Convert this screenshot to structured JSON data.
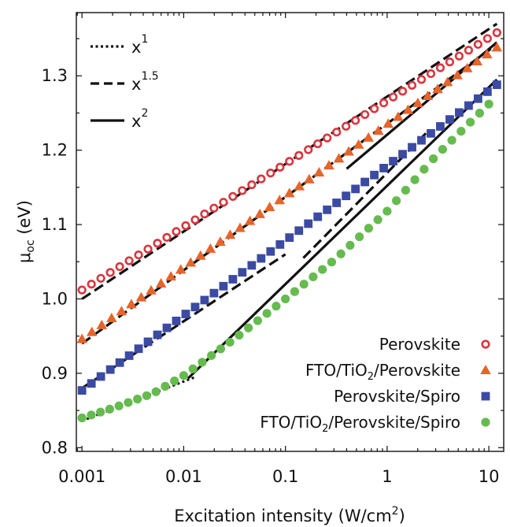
{
  "chart_data": {
    "type": "scatter",
    "xscale": "log",
    "xlim": [
      0.00088,
      14
    ],
    "ylim": [
      0.795,
      1.385
    ],
    "xlabel": "Excitation intensity (W/cm",
    "xlabel_sup": "2",
    "xlabel_tail": ")",
    "ylabel_main": "μ",
    "ylabel_sub": "oc",
    "ylabel_tail": " (eV)",
    "x_ticks": [
      {
        "v": 0.001,
        "label": "0.001"
      },
      {
        "v": 0.01,
        "label": "0.01"
      },
      {
        "v": 0.1,
        "label": "0.1"
      },
      {
        "v": 1,
        "label": "1"
      },
      {
        "v": 10,
        "label": "10"
      }
    ],
    "y_ticks": [
      {
        "v": 0.8,
        "label": "0.8"
      },
      {
        "v": 0.9,
        "label": "0.9"
      },
      {
        "v": 1.0,
        "label": "1.0"
      },
      {
        "v": 1.1,
        "label": "1.1"
      },
      {
        "v": 1.2,
        "label": "1.2"
      },
      {
        "v": 1.3,
        "label": "1.3"
      }
    ],
    "fit_legend": [
      {
        "base": "x",
        "exp": "1",
        "style": "dotted"
      },
      {
        "base": "x",
        "exp": "1.5",
        "style": "dashed"
      },
      {
        "base": "x",
        "exp": "2",
        "style": "solid"
      }
    ],
    "series": [
      {
        "name": "Perovskite",
        "marker": "open-circle",
        "color": "#d9363e",
        "x0": 0.001,
        "x1": 12,
        "n": 45,
        "y0": 1.012,
        "y1": 1.358
      },
      {
        "name_parts": [
          "FTO/TiO",
          "2",
          "/Perovskite"
        ],
        "marker": "triangle",
        "color": "#e5652b",
        "x0": 0.001,
        "x1": 12,
        "n": 43,
        "y0": 0.946,
        "y1": 1.338
      },
      {
        "name": "Perovskite/Spiro",
        "marker": "square",
        "color": "#3b4aa2",
        "x0": 0.001,
        "x1": 12,
        "n": 45,
        "y0": 0.877,
        "y1": 1.288
      },
      {
        "name_parts": [
          "FTO/TiO",
          "2",
          "/Perovskite/Spiro"
        ],
        "marker": "filled-circle",
        "color": "#66bb4f",
        "x0": 0.001,
        "x1": 10,
        "n": 45,
        "points": [
          [
            0.001,
            0.84
          ],
          [
            0.002,
            0.853
          ],
          [
            0.005,
            0.873
          ],
          [
            0.01,
            0.897
          ],
          [
            0.03,
            0.944
          ],
          [
            0.1,
            1.0
          ],
          [
            0.3,
            1.052
          ],
          [
            1,
            1.118
          ],
          [
            3,
            1.192
          ],
          [
            10,
            1.262
          ]
        ]
      }
    ],
    "fits": [
      {
        "style": "dashed",
        "x0": 0.001,
        "x1": 12,
        "y0": 1.0,
        "y1": 1.37
      },
      {
        "style": "dashed",
        "x0": 0.001,
        "x1": 12,
        "y0": 0.94,
        "y1": 1.342
      },
      {
        "style": "dashed",
        "x0": 0.001,
        "x1": 0.1,
        "y0": 0.88,
        "y1": 1.06
      },
      {
        "style": "dashed",
        "x0": 0.15,
        "x1": 2.5,
        "y0": 1.055,
        "y1": 1.225
      },
      {
        "style": "dotted",
        "x0": 0.001,
        "x1": 0.013,
        "y0": 0.836,
        "y1": 0.895
      },
      {
        "style": "solid",
        "x0": 0.011,
        "x1": 12,
        "y0": 0.893,
        "y1": 1.295
      },
      {
        "style": "solid",
        "x0": 0.4,
        "x1": 12,
        "y0": 1.175,
        "y1": 1.345
      }
    ]
  }
}
